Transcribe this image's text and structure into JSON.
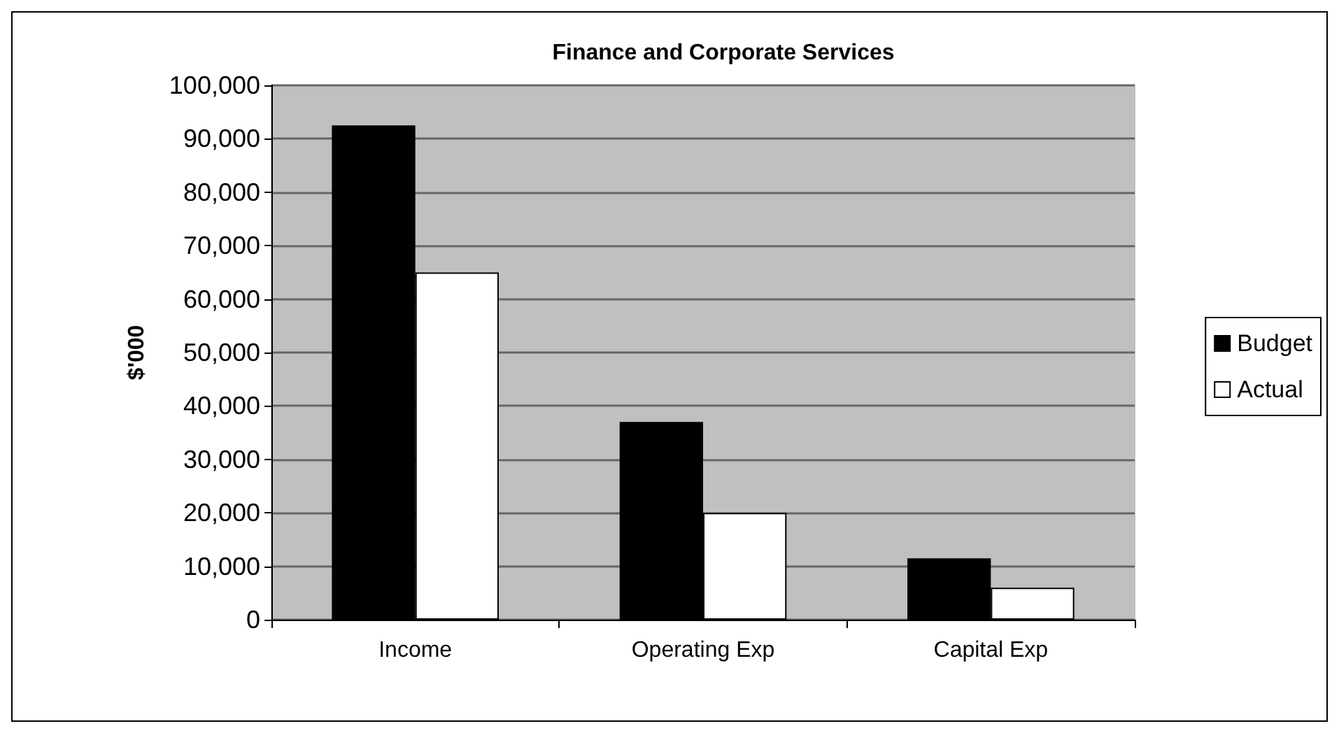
{
  "chart_data": {
    "type": "bar",
    "title": "Finance and Corporate Services",
    "ylabel": "$'000",
    "categories": [
      "Income",
      "Operating Exp",
      "Capital Exp"
    ],
    "series": [
      {
        "name": "Budget",
        "color": "#000000",
        "values": [
          92500,
          37000,
          11500
        ]
      },
      {
        "name": "Actual",
        "color": "#ffffff",
        "values": [
          65000,
          20000,
          6000
        ]
      }
    ],
    "ylim": [
      0,
      100000
    ],
    "yticks": [
      0,
      {
        "value": 10000,
        "label": "10,000"
      },
      {
        "value": 20000,
        "label": "20,000"
      },
      {
        "value": 30000,
        "label": "30,000"
      },
      {
        "value": 40000,
        "label": "40,000"
      },
      {
        "value": 50000,
        "label": "50,000"
      },
      {
        "value": 60000,
        "label": "60,000"
      },
      {
        "value": 70000,
        "label": "70,000"
      },
      {
        "value": 80000,
        "label": "80,000"
      },
      {
        "value": 90000,
        "label": "90,000"
      },
      {
        "value": 100000,
        "label": "100,000"
      }
    ],
    "grid": "y",
    "legend": "right"
  }
}
